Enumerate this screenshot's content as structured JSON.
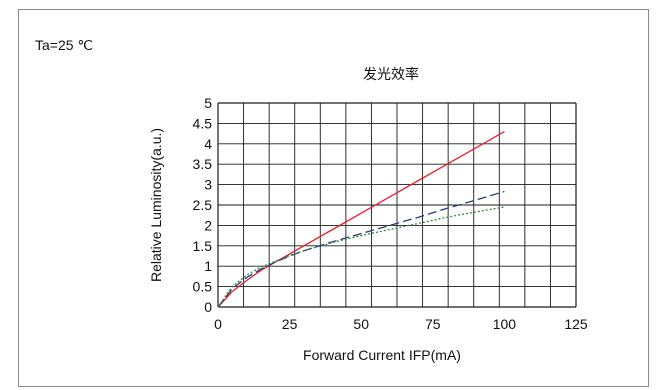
{
  "condition_label": "Ta=25 ℃",
  "chart_data": {
    "type": "line",
    "title": "发光效率",
    "xlabel": "Forward Current IFP(mA)",
    "ylabel": "Relative Luminosity(a.u.)",
    "xlim": [
      0,
      125
    ],
    "ylim": [
      0,
      5
    ],
    "x_ticks": [
      "0",
      "25",
      "50",
      "75",
      "100",
      "125"
    ],
    "y_ticks": [
      "0",
      "0.5",
      "1",
      "1.5",
      "2",
      "2.5",
      "3",
      "3.5",
      "4",
      "4.5",
      "5"
    ],
    "grid": true,
    "series": [
      {
        "style": "solid",
        "color": "#e8202a",
        "x": [
          0,
          5,
          10,
          15,
          20,
          25,
          30,
          40,
          50,
          60,
          70,
          80,
          90,
          100
        ],
        "y": [
          0.0,
          0.38,
          0.65,
          0.9,
          1.1,
          1.3,
          1.5,
          1.9,
          2.3,
          2.7,
          3.1,
          3.5,
          3.9,
          4.3
        ]
      },
      {
        "style": "dashed",
        "color": "#2a3a7a",
        "x": [
          0,
          5,
          10,
          15,
          20,
          25,
          30,
          40,
          50,
          60,
          70,
          80,
          90,
          100
        ],
        "y": [
          0.0,
          0.45,
          0.72,
          0.93,
          1.1,
          1.25,
          1.38,
          1.6,
          1.8,
          2.0,
          2.2,
          2.42,
          2.62,
          2.83
        ]
      },
      {
        "style": "dotted",
        "color": "#2a8a3a",
        "x": [
          0,
          5,
          10,
          15,
          20,
          25,
          30,
          40,
          50,
          60,
          70,
          80,
          90,
          100
        ],
        "y": [
          0.0,
          0.5,
          0.78,
          0.98,
          1.12,
          1.26,
          1.38,
          1.58,
          1.75,
          1.9,
          2.05,
          2.2,
          2.33,
          2.45
        ]
      }
    ]
  }
}
